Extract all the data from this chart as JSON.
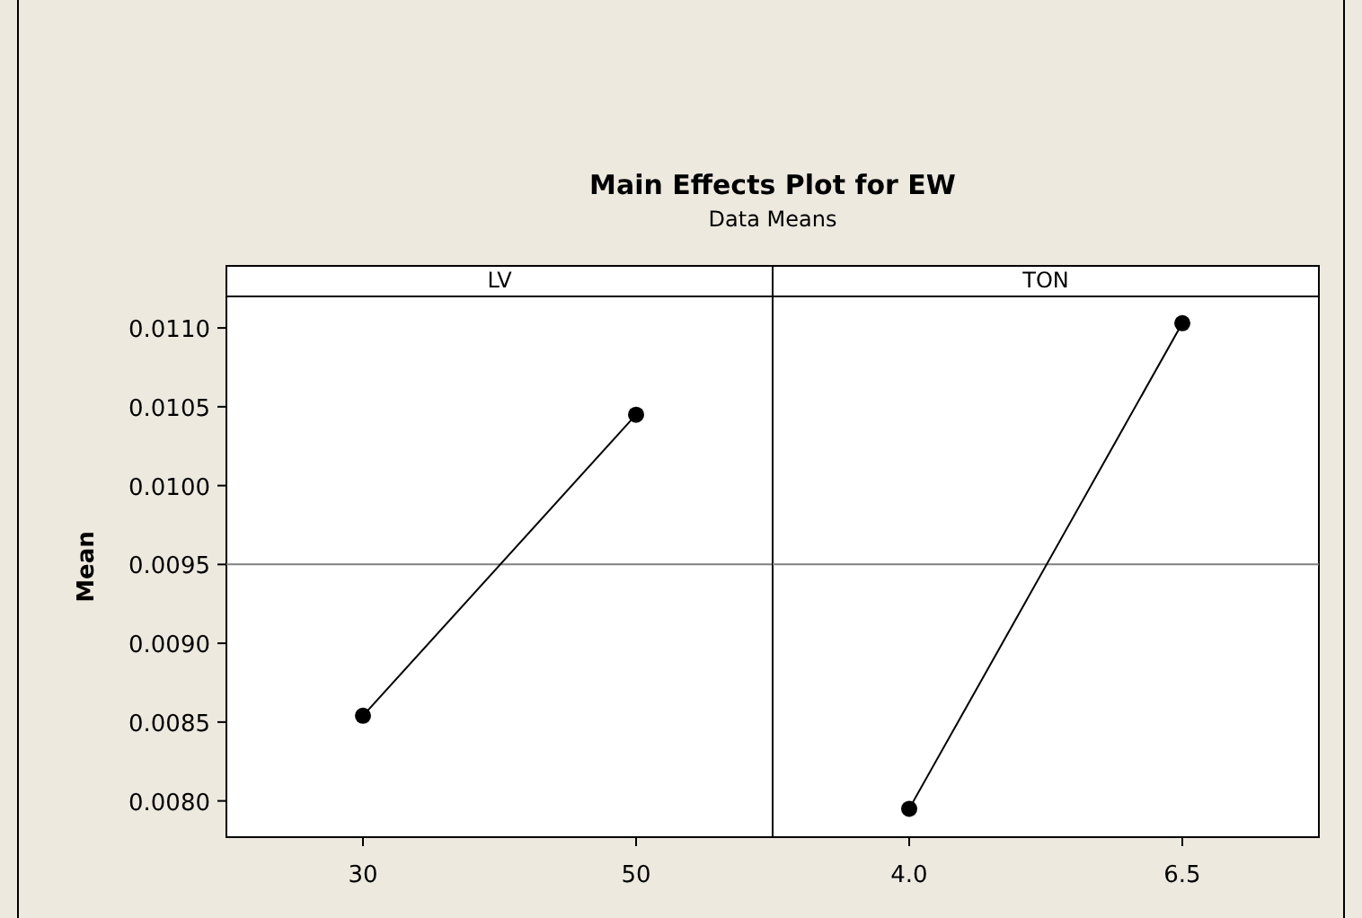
{
  "chart_data": [
    {
      "type": "line",
      "title": "Main Effects Plot for EW",
      "subtitle": "Data Means",
      "ylabel": "Mean",
      "annotations": [
        "LV"
      ],
      "categories": [
        "30",
        "50"
      ],
      "values": [
        0.00854,
        0.01045
      ],
      "color": "#000000",
      "marker": "circle",
      "ylim": [
        0.00777,
        0.0112
      ],
      "yticks": [
        {
          "value": 0.008,
          "label": "0.0080"
        },
        {
          "value": 0.0085,
          "label": "0.0085"
        },
        {
          "value": 0.009,
          "label": "0.0090"
        },
        {
          "value": 0.0095,
          "label": "0.0095"
        },
        {
          "value": 0.01,
          "label": "0.0100"
        },
        {
          "value": 0.0105,
          "label": "0.0105"
        },
        {
          "value": 0.011,
          "label": "0.0110"
        }
      ],
      "ref_lines": [
        {
          "axis": "y",
          "value": 0.0095,
          "color": "#808080"
        }
      ]
    },
    {
      "type": "line",
      "annotations": [
        "TON"
      ],
      "categories": [
        "4.0",
        "6.5"
      ],
      "values": [
        0.00795,
        0.01103
      ],
      "color": "#000000",
      "marker": "circle",
      "ylim": [
        0.00777,
        0.0112
      ],
      "tick_labels": "x",
      "ref_lines": [
        {
          "axis": "y",
          "value": 0.0095,
          "color": "#808080"
        }
      ]
    }
  ]
}
